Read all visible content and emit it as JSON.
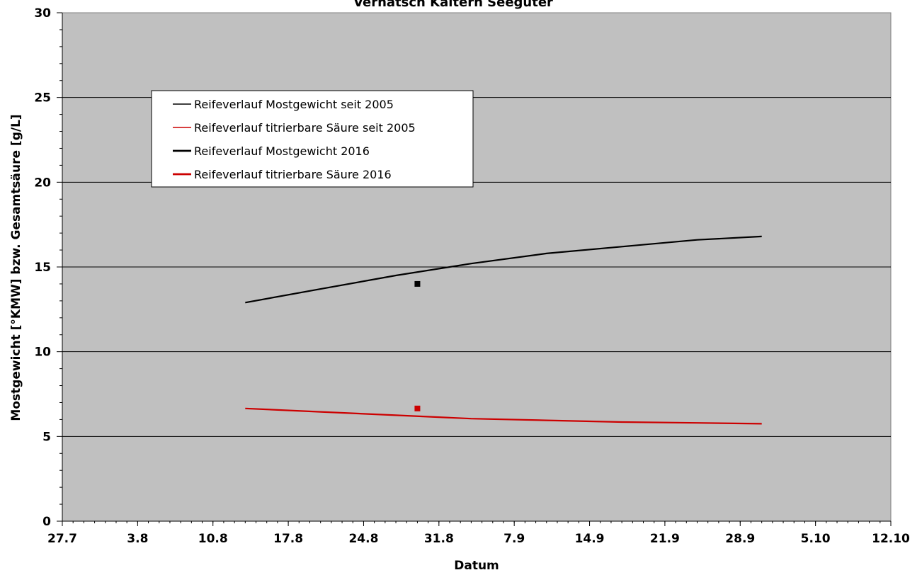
{
  "chart_data": {
    "type": "line",
    "title": "Vernatsch Kaltern Seegüter",
    "xlabel": "Datum",
    "ylabel": "Mostgewicht [°KMW] bzw. Gesamtsäure [g/L]",
    "x_tick_labels": [
      "27.7",
      "3.8",
      "10.8",
      "17.8",
      "24.8",
      "31.8",
      "7.9",
      "14.9",
      "21.9",
      "28.9",
      "5.10",
      "12.10"
    ],
    "x_tick_dates": [
      "2016-07-27",
      "2016-08-03",
      "2016-08-10",
      "2016-08-17",
      "2016-08-24",
      "2016-08-31",
      "2016-09-07",
      "2016-09-14",
      "2016-09-21",
      "2016-09-28",
      "2016-10-05",
      "2016-10-12"
    ],
    "xlim": [
      "2016-07-27",
      "2016-10-12"
    ],
    "ylim": [
      0,
      30
    ],
    "y_ticks": [
      0,
      5,
      10,
      15,
      20,
      25,
      30
    ],
    "grid": true,
    "legend_position": "top-left",
    "plot_background": "#c0c0c0",
    "series": [
      {
        "name": "Reifeverlauf Mostgewicht seit 2005",
        "color": "#000000",
        "style": "line",
        "x": [
          "2016-08-13",
          "2016-08-20",
          "2016-08-27",
          "2016-09-03",
          "2016-09-10",
          "2016-09-17",
          "2016-09-24",
          "2016-09-30"
        ],
        "y": [
          12.9,
          13.7,
          14.5,
          15.2,
          15.8,
          16.2,
          16.6,
          16.8
        ]
      },
      {
        "name": "Reifeverlauf titrierbare Säure seit 2005",
        "color": "#cc0000",
        "style": "line",
        "x": [
          "2016-08-13",
          "2016-08-20",
          "2016-08-27",
          "2016-09-03",
          "2016-09-10",
          "2016-09-17",
          "2016-09-24",
          "2016-09-30"
        ],
        "y": [
          6.65,
          6.45,
          6.25,
          6.05,
          5.95,
          5.85,
          5.8,
          5.75
        ]
      },
      {
        "name": "Reifeverlauf Mostgewicht 2016",
        "color": "#000000",
        "style": "marker",
        "x": [
          "2016-08-29"
        ],
        "y": [
          14.0
        ]
      },
      {
        "name": "Reifeverlauf titrierbare Säure 2016",
        "color": "#cc0000",
        "style": "marker",
        "x": [
          "2016-08-29"
        ],
        "y": [
          6.65
        ]
      }
    ]
  }
}
